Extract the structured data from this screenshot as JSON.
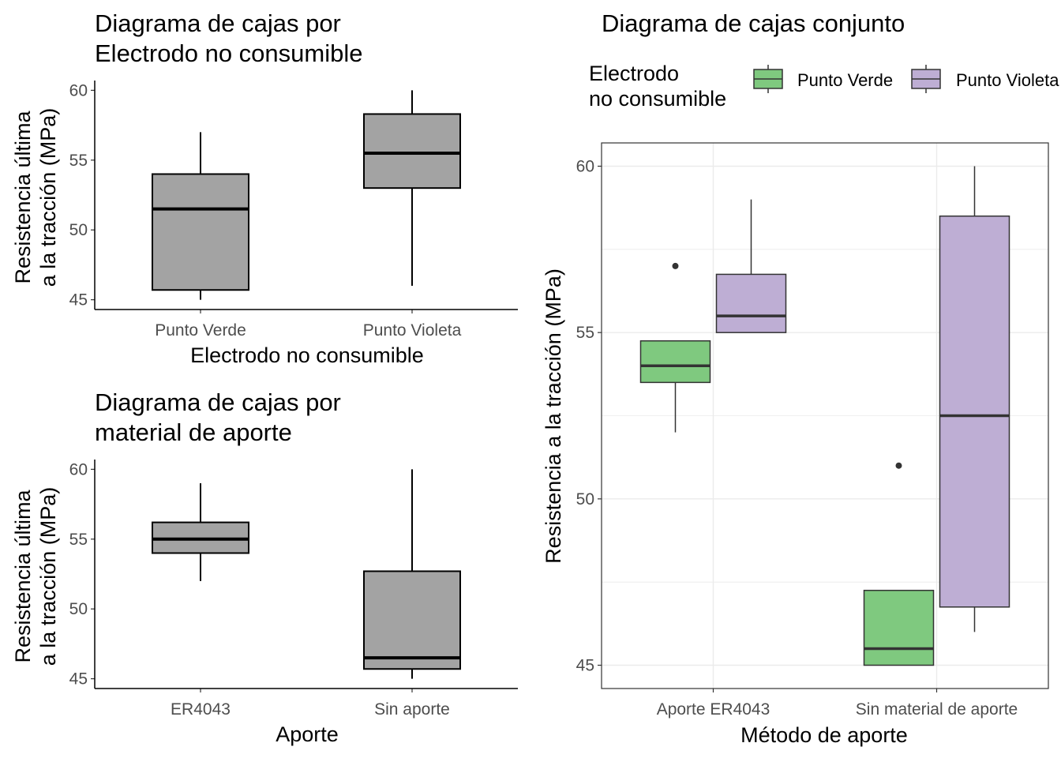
{
  "chart_data": [
    {
      "type": "boxplot",
      "title": [
        "Diagrama de cajas por",
        "Electrodo no consumible"
      ],
      "xlabel": "Electrodo no consumible",
      "ylabel": [
        "Resistencia última",
        "a la tracción (MPa)"
      ],
      "categories": [
        "Punto Verde",
        "Punto Violeta"
      ],
      "yticks": [
        45,
        50,
        55,
        60
      ],
      "ylim": [
        44.3,
        60.7
      ],
      "grid": false,
      "fill": "#a3a3a3",
      "boxes": [
        {
          "min": 45,
          "q1": 45.7,
          "median": 51.5,
          "q3": 54,
          "max": 57,
          "outliers": []
        },
        {
          "min": 46,
          "q1": 53,
          "median": 55.5,
          "q3": 58.3,
          "max": 60,
          "outliers": []
        }
      ]
    },
    {
      "type": "boxplot",
      "title": [
        "Diagrama de cajas por",
        "material de aporte"
      ],
      "xlabel": "Aporte",
      "ylabel": [
        "Resistencia última",
        "a la tracción (MPa)"
      ],
      "categories": [
        "ER4043",
        "Sin aporte"
      ],
      "yticks": [
        45,
        50,
        55,
        60
      ],
      "ylim": [
        44.3,
        60.7
      ],
      "grid": false,
      "fill": "#a3a3a3",
      "boxes": [
        {
          "min": 52,
          "q1": 54,
          "median": 55,
          "q3": 56.2,
          "max": 59,
          "outliers": []
        },
        {
          "min": 45,
          "q1": 45.7,
          "median": 46.5,
          "q3": 52.7,
          "max": 60,
          "outliers": []
        }
      ]
    },
    {
      "type": "boxplot",
      "title": "Diagrama de cajas conjunto",
      "xlabel": "Método de aporte",
      "ylabel": "Resistencia a la tracción (MPa)",
      "categories": [
        "Aporte ER4043",
        "Sin material de aporte"
      ],
      "yticks": [
        45,
        50,
        55,
        60
      ],
      "ylim": [
        44.3,
        60.7
      ],
      "grid": true,
      "legend": {
        "title": [
          "Electrodo",
          "no consumible"
        ],
        "position": "top"
      },
      "series": [
        {
          "name": "Punto Verde",
          "color": "#7fc97f",
          "boxes": [
            {
              "min": 52,
              "q1": 53.5,
              "median": 54,
              "q3": 54.75,
              "max": 54.75,
              "outliers": [
                57
              ]
            },
            {
              "min": 45,
              "q1": 45,
              "median": 45.5,
              "q3": 47.25,
              "max": 47.25,
              "outliers": [
                51
              ]
            }
          ]
        },
        {
          "name": "Punto Violeta",
          "color": "#beaed4",
          "boxes": [
            {
              "min": 55,
              "q1": 55,
              "median": 55.5,
              "q3": 56.75,
              "max": 59,
              "outliers": []
            },
            {
              "min": 46,
              "q1": 46.75,
              "median": 52.5,
              "q3": 58.5,
              "max": 60,
              "outliers": []
            }
          ]
        }
      ]
    }
  ]
}
